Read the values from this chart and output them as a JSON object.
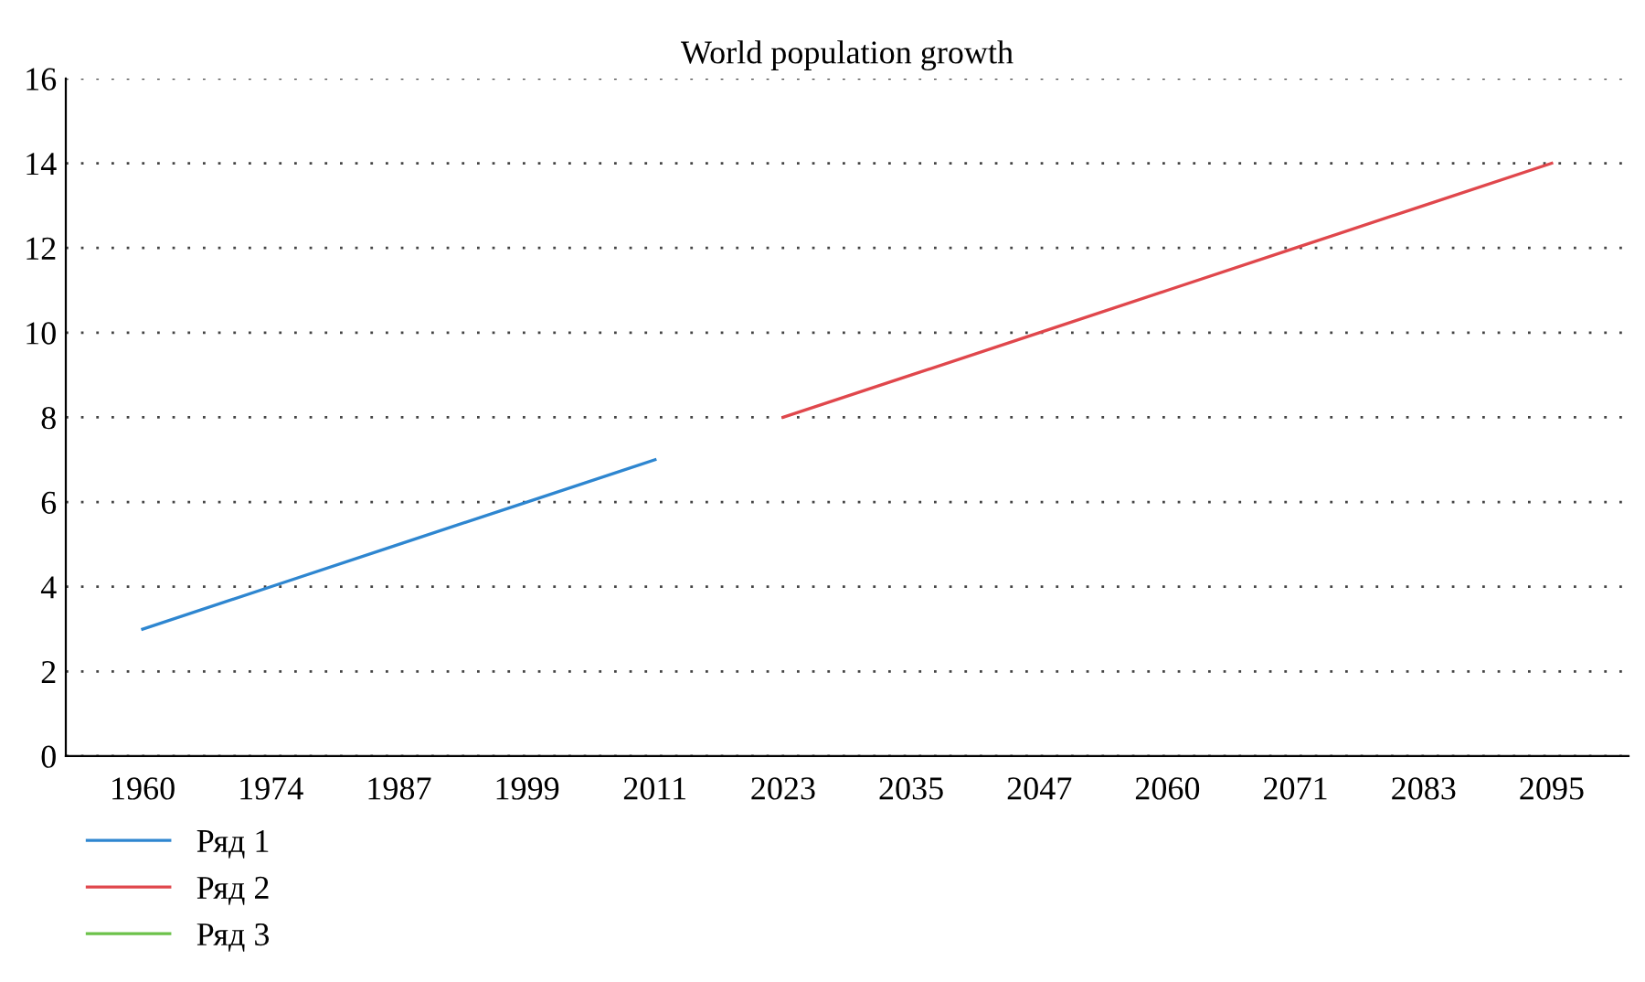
{
  "chart_data": {
    "type": "line",
    "title": "World population growth",
    "categories": [
      "1960",
      "1974",
      "1987",
      "1999",
      "2011",
      "2023",
      "2035",
      "2047",
      "2060",
      "2071",
      "2083",
      "2095"
    ],
    "series": [
      {
        "name": "Ряд 1",
        "color": "#2e86d0",
        "values": [
          3,
          4,
          5,
          6,
          7,
          null,
          null,
          null,
          null,
          null,
          null,
          null
        ]
      },
      {
        "name": "Ряд 2",
        "color": "#e0474c",
        "values": [
          null,
          null,
          null,
          null,
          null,
          8,
          9,
          10,
          11,
          12,
          13,
          14
        ]
      },
      {
        "name": "Ряд 3",
        "color": "#6cc24a",
        "values": [
          null,
          null,
          null,
          null,
          null,
          null,
          null,
          null,
          null,
          null,
          null,
          null
        ]
      }
    ],
    "ylim": [
      0,
      16
    ],
    "yticks": [
      0,
      2,
      4,
      6,
      8,
      10,
      12,
      14,
      16
    ],
    "grid": "y",
    "legend": "bottom left",
    "marker": "none",
    "line_style": "solid"
  }
}
